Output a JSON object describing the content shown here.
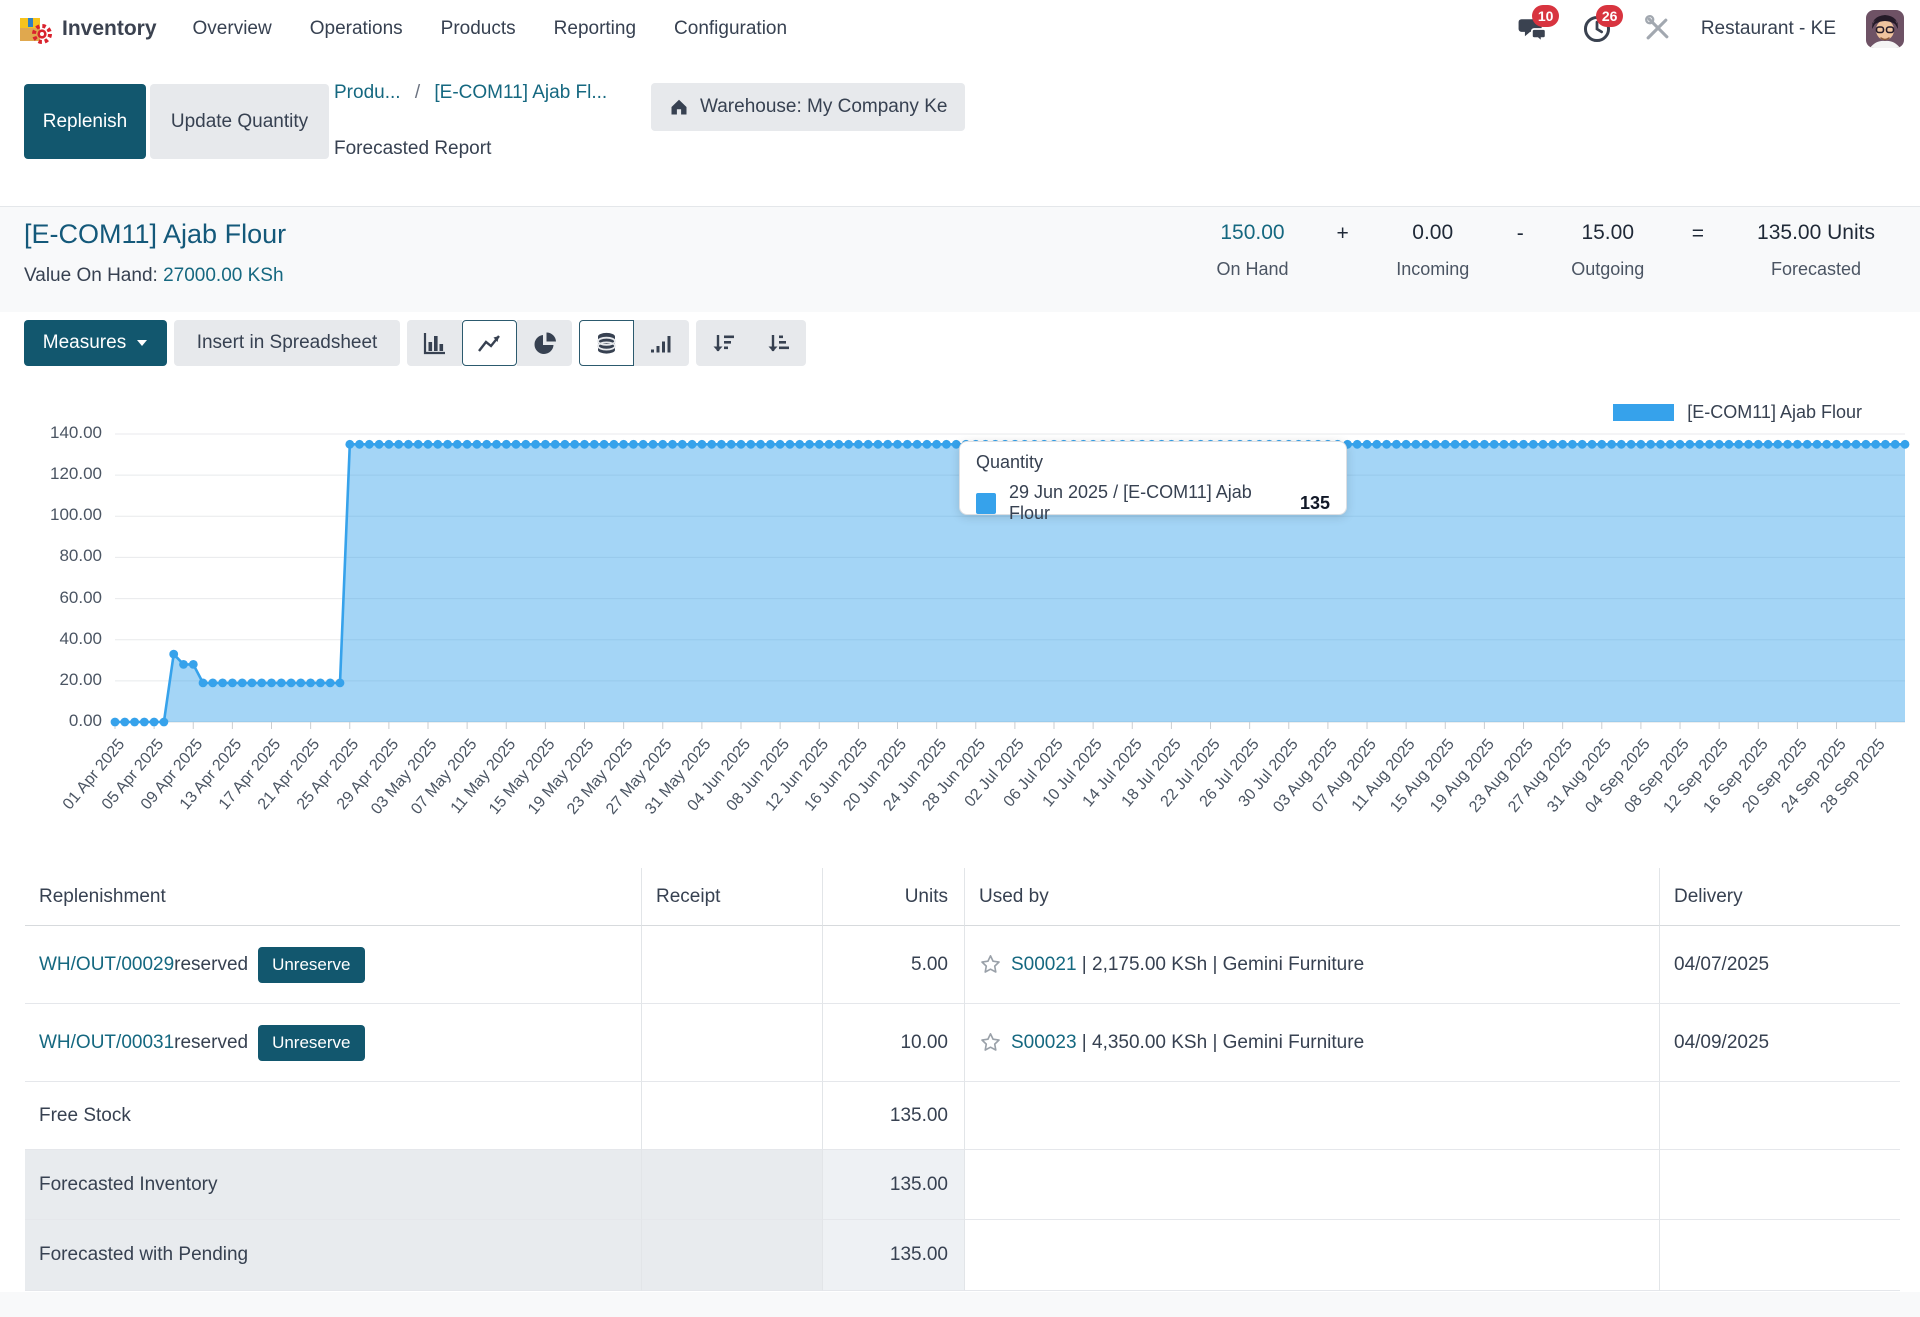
{
  "topbar": {
    "app_name": "Inventory",
    "menus": [
      "Overview",
      "Operations",
      "Products",
      "Reporting",
      "Configuration"
    ],
    "messages_badge": "10",
    "activities_badge": "26",
    "company": "Restaurant - KE"
  },
  "control_panel": {
    "replenish_label": "Replenish",
    "update_quantity_label": "Update Quantity",
    "breadcrumb_level1": "Produ...",
    "breadcrumb_sep": "/",
    "breadcrumb_level2": "[E-COM11] Ajab Fl...",
    "breadcrumb_current": "Forecasted Report",
    "search_facet": "Warehouse: My Company Ke"
  },
  "product_header": {
    "title": "[E-COM11] Ajab Flour",
    "value_on_hand_label": "Value On Hand:",
    "value_on_hand": "27000.00 KSh",
    "stats": {
      "on_hand_value": "150.00",
      "on_hand_label": "On Hand",
      "plus": "+",
      "incoming_value": "0.00",
      "incoming_label": "Incoming",
      "minus": "-",
      "outgoing_value": "15.00",
      "outgoing_label": "Outgoing",
      "equals": "=",
      "forecasted_value": "135.00 Units",
      "forecasted_label": "Forecasted"
    }
  },
  "toolbar": {
    "measures_label": "Measures",
    "insert_label": "Insert in Spreadsheet"
  },
  "chart_data": {
    "type": "area",
    "series_name": "[E-COM11] Ajab Flour",
    "color": "#36A2EB",
    "ylim": [
      0,
      140
    ],
    "yticks": [
      0,
      20,
      40,
      60,
      80,
      100,
      120,
      140
    ],
    "x_unit": "day",
    "x_start": "01 Apr 2025",
    "x_tick_labels": [
      "01 Apr 2025",
      "05 Apr 2025",
      "09 Apr 2025",
      "13 Apr 2025",
      "17 Apr 2025",
      "21 Apr 2025",
      "25 Apr 2025",
      "29 Apr 2025",
      "03 May 2025",
      "07 May 2025",
      "11 May 2025",
      "15 May 2025",
      "19 May 2025",
      "23 May 2025",
      "27 May 2025",
      "31 May 2025",
      "04 Jun 2025",
      "08 Jun 2025",
      "12 Jun 2025",
      "16 Jun 2025",
      "20 Jun 2025",
      "24 Jun 2025",
      "28 Jun 2025",
      "02 Jul 2025",
      "06 Jul 2025",
      "10 Jul 2025",
      "14 Jul 2025",
      "18 Jul 2025",
      "22 Jul 2025",
      "26 Jul 2025",
      "30 Jul 2025",
      "03 Aug 2025",
      "07 Aug 2025",
      "11 Aug 2025",
      "15 Aug 2025",
      "19 Aug 2025",
      "23 Aug 2025",
      "27 Aug 2025",
      "31 Aug 2025",
      "04 Sep 2025",
      "08 Sep 2025",
      "12 Sep 2025",
      "16 Sep 2025",
      "20 Sep 2025",
      "24 Sep 2025",
      "28 Sep 2025"
    ],
    "segments": [
      {
        "from_day": 0,
        "to_day": 5,
        "value": 0
      },
      {
        "from_day": 6,
        "to_day": 6,
        "value": 33
      },
      {
        "from_day": 7,
        "to_day": 8,
        "value": 28
      },
      {
        "from_day": 9,
        "to_day": 23,
        "value": 19
      },
      {
        "from_day": 24,
        "to_day": 183,
        "value": 135
      }
    ],
    "legend_position": "top-right",
    "tooltip": {
      "title": "Quantity",
      "label": "29 Jun 2025 / [E-COM11] Ajab Flour",
      "value": "135"
    }
  },
  "table": {
    "headers": [
      "Replenishment",
      "Receipt",
      "Units",
      "Used by",
      "Delivery"
    ],
    "rows": [
      {
        "name": "WH/OUT/00029",
        "name_is_link": true,
        "suffix": " reserved",
        "button": "Unreserve",
        "receipt": "",
        "units": "5.00",
        "used_by_link": "S00021",
        "used_by_text": " | 2,175.00 KSh | Gemini Furniture",
        "delivery": "04/07/2025",
        "shaded": false
      },
      {
        "name": "WH/OUT/00031",
        "name_is_link": true,
        "suffix": " reserved",
        "button": "Unreserve",
        "receipt": "",
        "units": "10.00",
        "used_by_link": "S00023",
        "used_by_text": " | 4,350.00 KSh | Gemini Furniture",
        "delivery": "04/09/2025",
        "shaded": false
      },
      {
        "name": "Free Stock",
        "name_is_link": false,
        "units": "135.00",
        "delivery": "",
        "shaded": false
      },
      {
        "name": "Forecasted Inventory",
        "name_is_link": false,
        "units": "135.00",
        "delivery": "",
        "shaded": true
      },
      {
        "name": "Forecasted with Pending",
        "name_is_link": false,
        "units": "135.00",
        "delivery": "",
        "shaded": true
      }
    ]
  },
  "colors": {
    "primary_button": "#12576e",
    "link": "#156880",
    "badge_red": "#d8343f",
    "chart_blue": "#36A2EB",
    "shaded_row": "#e8ebee",
    "shaded_units_cell": "#eef1f4"
  }
}
